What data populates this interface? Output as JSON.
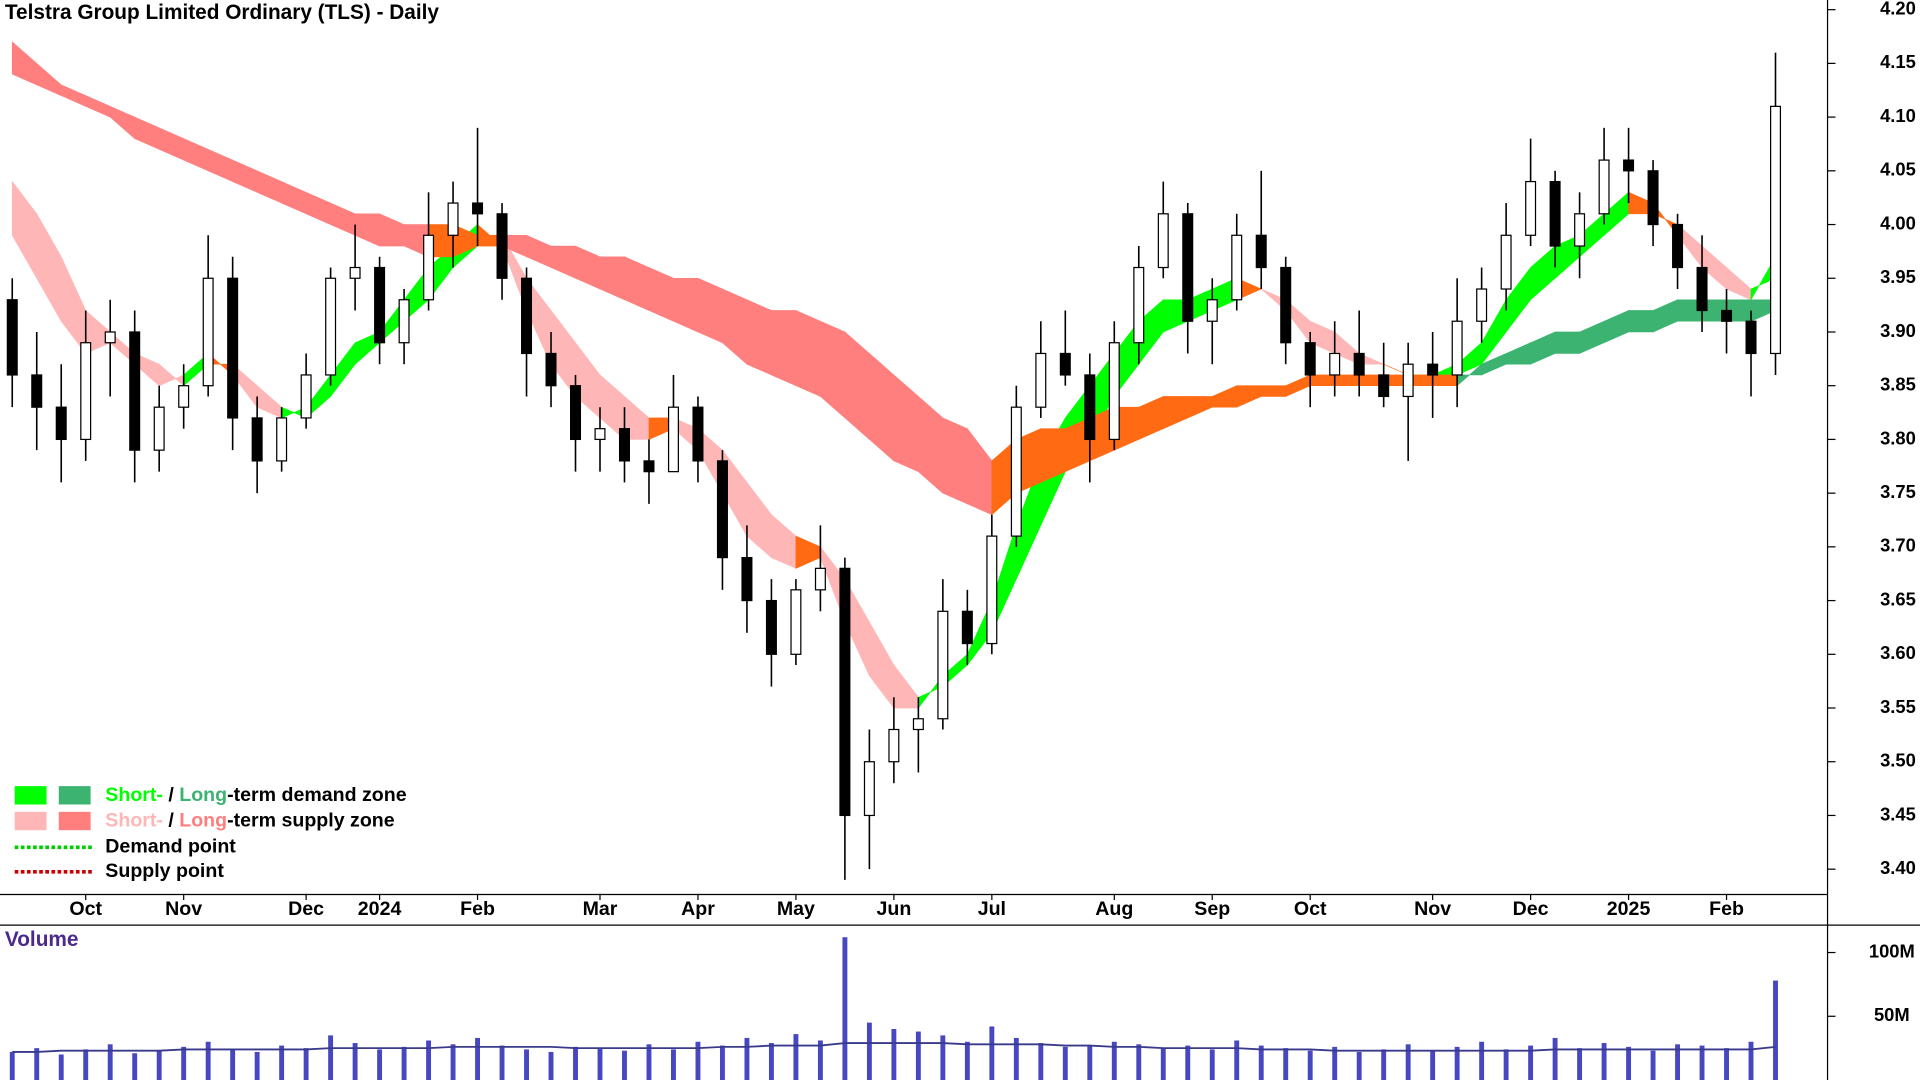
{
  "chart_data": {
    "type": "candlestick",
    "title": "Telstra Group Limited Ordinary (TLS) - Daily",
    "categories": [
      null,
      null,
      null,
      "Oct",
      null,
      null,
      null,
      "Nov",
      null,
      null,
      null,
      null,
      "Dec",
      null,
      null,
      "2024",
      null,
      null,
      null,
      "Feb",
      null,
      null,
      null,
      null,
      "Mar",
      null,
      null,
      null,
      "Apr",
      null,
      null,
      null,
      "May",
      null,
      null,
      null,
      "Jun",
      null,
      null,
      null,
      "Jul",
      null,
      null,
      null,
      null,
      "Aug",
      null,
      null,
      null,
      "Sep",
      null,
      null,
      null,
      "Oct",
      null,
      null,
      null,
      null,
      "Nov",
      null,
      null,
      null,
      "Dec",
      null,
      null,
      null,
      "2025",
      null,
      null,
      null,
      "Feb",
      null,
      null
    ],
    "ohlc": {
      "open": [
        3.93,
        3.86,
        3.83,
        3.8,
        3.89,
        3.9,
        3.79,
        3.83,
        3.85,
        3.95,
        3.82,
        3.78,
        3.82,
        3.86,
        3.95,
        3.96,
        3.89,
        3.93,
        3.99,
        4.02,
        4.01,
        3.95,
        3.88,
        3.85,
        3.8,
        3.81,
        3.78,
        3.77,
        3.83,
        3.78,
        3.69,
        3.65,
        3.6,
        3.66,
        3.68,
        3.45,
        3.5,
        3.53,
        3.54,
        3.64,
        3.61,
        3.71,
        3.83,
        3.88,
        3.86,
        3.8,
        3.89,
        3.96,
        4.01,
        3.91,
        3.93,
        3.99,
        3.96,
        3.89,
        3.86,
        3.88,
        3.86,
        3.84,
        3.87,
        3.86,
        3.91,
        3.94,
        3.99,
        4.04,
        3.98,
        4.01,
        4.06,
        4.05,
        4.0,
        3.96,
        3.92,
        3.91,
        3.88
      ],
      "high": [
        3.95,
        3.9,
        3.87,
        3.92,
        3.93,
        3.92,
        3.85,
        3.87,
        3.99,
        3.97,
        3.84,
        3.83,
        3.88,
        3.96,
        4.0,
        3.97,
        3.94,
        4.03,
        4.04,
        4.09,
        4.02,
        3.96,
        3.9,
        3.86,
        3.83,
        3.83,
        3.8,
        3.86,
        3.84,
        3.79,
        3.72,
        3.67,
        3.67,
        3.72,
        3.69,
        3.53,
        3.56,
        3.56,
        3.67,
        3.66,
        3.73,
        3.85,
        3.91,
        3.92,
        3.88,
        3.91,
        3.98,
        4.04,
        4.02,
        3.95,
        4.01,
        4.05,
        3.97,
        3.9,
        3.91,
        3.92,
        3.89,
        3.89,
        3.9,
        3.95,
        3.96,
        4.02,
        4.08,
        4.05,
        4.03,
        4.09,
        4.09,
        4.06,
        4.01,
        3.99,
        3.94,
        3.92,
        4.16
      ],
      "low": [
        3.83,
        3.79,
        3.76,
        3.78,
        3.84,
        3.76,
        3.77,
        3.81,
        3.84,
        3.79,
        3.75,
        3.77,
        3.81,
        3.85,
        3.92,
        3.87,
        3.87,
        3.92,
        3.96,
        3.98,
        3.93,
        3.84,
        3.83,
        3.77,
        3.77,
        3.76,
        3.74,
        3.77,
        3.76,
        3.66,
        3.62,
        3.57,
        3.59,
        3.64,
        3.39,
        3.4,
        3.48,
        3.49,
        3.53,
        3.59,
        3.6,
        3.7,
        3.82,
        3.85,
        3.76,
        3.79,
        3.87,
        3.95,
        3.88,
        3.87,
        3.92,
        3.94,
        3.87,
        3.83,
        3.84,
        3.84,
        3.83,
        3.78,
        3.82,
        3.83,
        3.89,
        3.92,
        3.98,
        3.96,
        3.95,
        4.0,
        4.02,
        3.98,
        3.94,
        3.9,
        3.88,
        3.84,
        3.86
      ],
      "close": [
        3.86,
        3.83,
        3.8,
        3.89,
        3.9,
        3.79,
        3.83,
        3.85,
        3.95,
        3.82,
        3.78,
        3.82,
        3.86,
        3.95,
        3.96,
        3.89,
        3.93,
        3.99,
        4.02,
        4.01,
        3.95,
        3.88,
        3.85,
        3.8,
        3.81,
        3.78,
        3.77,
        3.83,
        3.78,
        3.69,
        3.65,
        3.6,
        3.66,
        3.68,
        3.45,
        3.5,
        3.53,
        3.54,
        3.64,
        3.61,
        3.71,
        3.83,
        3.88,
        3.86,
        3.8,
        3.89,
        3.96,
        4.01,
        3.91,
        3.93,
        3.99,
        3.96,
        3.89,
        3.86,
        3.88,
        3.86,
        3.84,
        3.87,
        3.86,
        3.91,
        3.94,
        3.99,
        4.04,
        3.98,
        4.01,
        4.06,
        4.05,
        4.0,
        3.96,
        3.92,
        3.91,
        3.88,
        4.11
      ],
      "up_color": "#ffffff",
      "down_color": "#000000"
    },
    "zones": [
      {
        "fast": [
          3.99,
          3.95,
          3.91,
          3.88,
          3.89,
          3.87,
          3.85,
          3.86,
          3.88,
          3.86,
          3.83,
          3.82,
          3.83,
          3.86,
          3.89,
          3.9,
          3.93,
          3.96,
          3.98,
          4.0,
          3.98,
          3.92,
          3.87,
          3.84,
          3.82,
          3.8,
          3.8,
          3.81,
          3.79,
          3.75,
          3.71,
          3.69,
          3.68,
          3.69,
          3.63,
          3.58,
          3.55,
          3.55,
          3.58,
          3.6,
          3.65,
          3.72,
          3.78,
          3.82,
          3.85,
          3.88,
          3.91,
          3.93,
          3.93,
          3.94,
          3.95,
          3.94,
          3.92,
          3.89,
          3.88,
          3.87,
          3.87,
          3.86,
          3.86,
          3.87,
          3.89,
          3.93,
          3.96,
          3.98,
          3.99,
          4.01,
          4.03,
          4.02,
          3.99,
          3.96,
          3.94,
          3.93,
          3.97
        ],
        "slow": [
          4.04,
          4.01,
          3.97,
          3.92,
          3.9,
          3.88,
          3.87,
          3.85,
          3.87,
          3.87,
          3.85,
          3.83,
          3.82,
          3.84,
          3.87,
          3.89,
          3.91,
          3.93,
          3.96,
          3.98,
          3.99,
          3.95,
          3.92,
          3.89,
          3.86,
          3.84,
          3.82,
          3.82,
          3.81,
          3.79,
          3.76,
          3.73,
          3.71,
          3.7,
          3.67,
          3.63,
          3.59,
          3.56,
          3.57,
          3.59,
          3.62,
          3.67,
          3.72,
          3.77,
          3.8,
          3.84,
          3.87,
          3.9,
          3.91,
          3.92,
          3.93,
          3.94,
          3.93,
          3.91,
          3.9,
          3.88,
          3.87,
          3.86,
          3.86,
          3.86,
          3.87,
          3.9,
          3.93,
          3.95,
          3.97,
          3.99,
          4.01,
          4.01,
          4.0,
          3.98,
          3.96,
          3.94,
          3.95
        ],
        "demand_color": "#00ff00",
        "supply_color": "#ffb6b6"
      },
      {
        "fast": [
          4.14,
          4.13,
          4.12,
          4.11,
          4.1,
          4.08,
          4.07,
          4.06,
          4.05,
          4.04,
          4.03,
          4.02,
          4.01,
          4.0,
          3.99,
          3.98,
          3.98,
          3.97,
          3.97,
          3.98,
          3.98,
          3.97,
          3.96,
          3.95,
          3.94,
          3.93,
          3.92,
          3.91,
          3.9,
          3.89,
          3.87,
          3.86,
          3.85,
          3.84,
          3.82,
          3.8,
          3.78,
          3.77,
          3.75,
          3.74,
          3.73,
          3.75,
          3.76,
          3.77,
          3.78,
          3.79,
          3.8,
          3.81,
          3.82,
          3.83,
          3.83,
          3.84,
          3.84,
          3.85,
          3.85,
          3.85,
          3.85,
          3.85,
          3.85,
          3.85,
          3.87,
          3.88,
          3.89,
          3.9,
          3.9,
          3.91,
          3.92,
          3.92,
          3.93,
          3.93,
          3.93,
          3.93,
          3.93
        ],
        "slow": [
          4.17,
          4.15,
          4.13,
          4.12,
          4.11,
          4.1,
          4.09,
          4.08,
          4.07,
          4.06,
          4.05,
          4.04,
          4.03,
          4.02,
          4.01,
          4.01,
          4.0,
          4.0,
          4.0,
          3.99,
          3.99,
          3.99,
          3.98,
          3.98,
          3.97,
          3.97,
          3.96,
          3.95,
          3.95,
          3.94,
          3.93,
          3.92,
          3.92,
          3.91,
          3.9,
          3.88,
          3.86,
          3.84,
          3.82,
          3.81,
          3.78,
          3.8,
          3.81,
          3.81,
          3.82,
          3.83,
          3.83,
          3.84,
          3.84,
          3.84,
          3.85,
          3.85,
          3.85,
          3.86,
          3.86,
          3.86,
          3.86,
          3.86,
          3.86,
          3.86,
          3.86,
          3.87,
          3.87,
          3.88,
          3.88,
          3.89,
          3.9,
          3.9,
          3.91,
          3.91,
          3.91,
          3.91,
          3.92
        ],
        "demand_color": "#3cb371",
        "supply_color": "#ff7f7f"
      }
    ],
    "neutral_zone_color": "#ff6a13",
    "ylim": [
      3.377,
      4.209
    ],
    "yticks": [
      {
        "value": 3.4,
        "label": "3.40"
      },
      {
        "value": 3.45,
        "label": "3.45"
      },
      {
        "value": 3.5,
        "label": "3.50"
      },
      {
        "value": 3.55,
        "label": "3.55"
      },
      {
        "value": 3.6,
        "label": "3.60"
      },
      {
        "value": 3.65,
        "label": "3.65"
      },
      {
        "value": 3.7,
        "label": "3.70"
      },
      {
        "value": 3.75,
        "label": "3.75"
      },
      {
        "value": 3.8,
        "label": "3.80"
      },
      {
        "value": 3.85,
        "label": "3.85"
      },
      {
        "value": 3.9,
        "label": "3.90"
      },
      {
        "value": 3.95,
        "label": "3.95"
      },
      {
        "value": 4.0,
        "label": "4.00"
      },
      {
        "value": 4.05,
        "label": "4.05"
      },
      {
        "value": 4.1,
        "label": "4.10"
      },
      {
        "value": 4.15,
        "label": "4.15"
      },
      {
        "value": 4.2,
        "label": "4.20"
      }
    ],
    "grid": false,
    "volume": {
      "label": "Volume",
      "values": [
        22000000,
        25000000,
        20000000,
        24000000,
        28000000,
        21000000,
        23000000,
        26000000,
        30000000,
        24000000,
        22000000,
        27000000,
        25000000,
        35000000,
        29000000,
        24000000,
        26000000,
        31000000,
        28000000,
        33000000,
        27000000,
        24000000,
        22000000,
        26000000,
        25000000,
        23000000,
        28000000,
        24000000,
        30000000,
        27000000,
        33000000,
        29000000,
        36000000,
        31000000,
        112000000,
        45000000,
        40000000,
        38000000,
        35000000,
        30000000,
        42000000,
        33000000,
        29000000,
        26000000,
        27000000,
        30000000,
        28000000,
        25000000,
        27000000,
        24000000,
        31000000,
        27000000,
        25000000,
        23000000,
        26000000,
        22000000,
        24000000,
        28000000,
        23000000,
        26000000,
        30000000,
        24000000,
        27000000,
        33000000,
        25000000,
        29000000,
        26000000,
        23000000,
        28000000,
        27000000,
        25000000,
        30000000,
        78000000
      ],
      "average": [
        22000000,
        22000000,
        23000000,
        23000000,
        23000000,
        23000000,
        23000000,
        24000000,
        24000000,
        24000000,
        24000000,
        24000000,
        24000000,
        25000000,
        25000000,
        25000000,
        25000000,
        25000000,
        26000000,
        26000000,
        26000000,
        26000000,
        26000000,
        25000000,
        25000000,
        25000000,
        25000000,
        25000000,
        25000000,
        26000000,
        26000000,
        27000000,
        27000000,
        27000000,
        29000000,
        29000000,
        29000000,
        29000000,
        29000000,
        28000000,
        28000000,
        28000000,
        28000000,
        27000000,
        27000000,
        26000000,
        26000000,
        25000000,
        25000000,
        25000000,
        25000000,
        24000000,
        24000000,
        24000000,
        23000000,
        23000000,
        23000000,
        23000000,
        23000000,
        23000000,
        23000000,
        23000000,
        23000000,
        24000000,
        24000000,
        24000000,
        24000000,
        24000000,
        24000000,
        24000000,
        24000000,
        24000000,
        26000000
      ],
      "color": "#4747c2",
      "average_color": "#3a3a8c",
      "ylim": [
        0,
        122000000
      ],
      "yticks": [
        {
          "value": 50000000,
          "label": "50M"
        },
        {
          "value": 100000000,
          "label": "100M"
        }
      ]
    },
    "legend": {
      "demand_zone": [
        "Short-",
        " / ",
        "Long",
        "-term demand zone"
      ],
      "supply_zone": [
        "Short-",
        " / ",
        "Long",
        "-term supply zone"
      ],
      "demand_point": "Demand point",
      "supply_point": "Supply point",
      "demand_point_color": "#00cc00",
      "supply_point_color": "#cc0000"
    }
  }
}
